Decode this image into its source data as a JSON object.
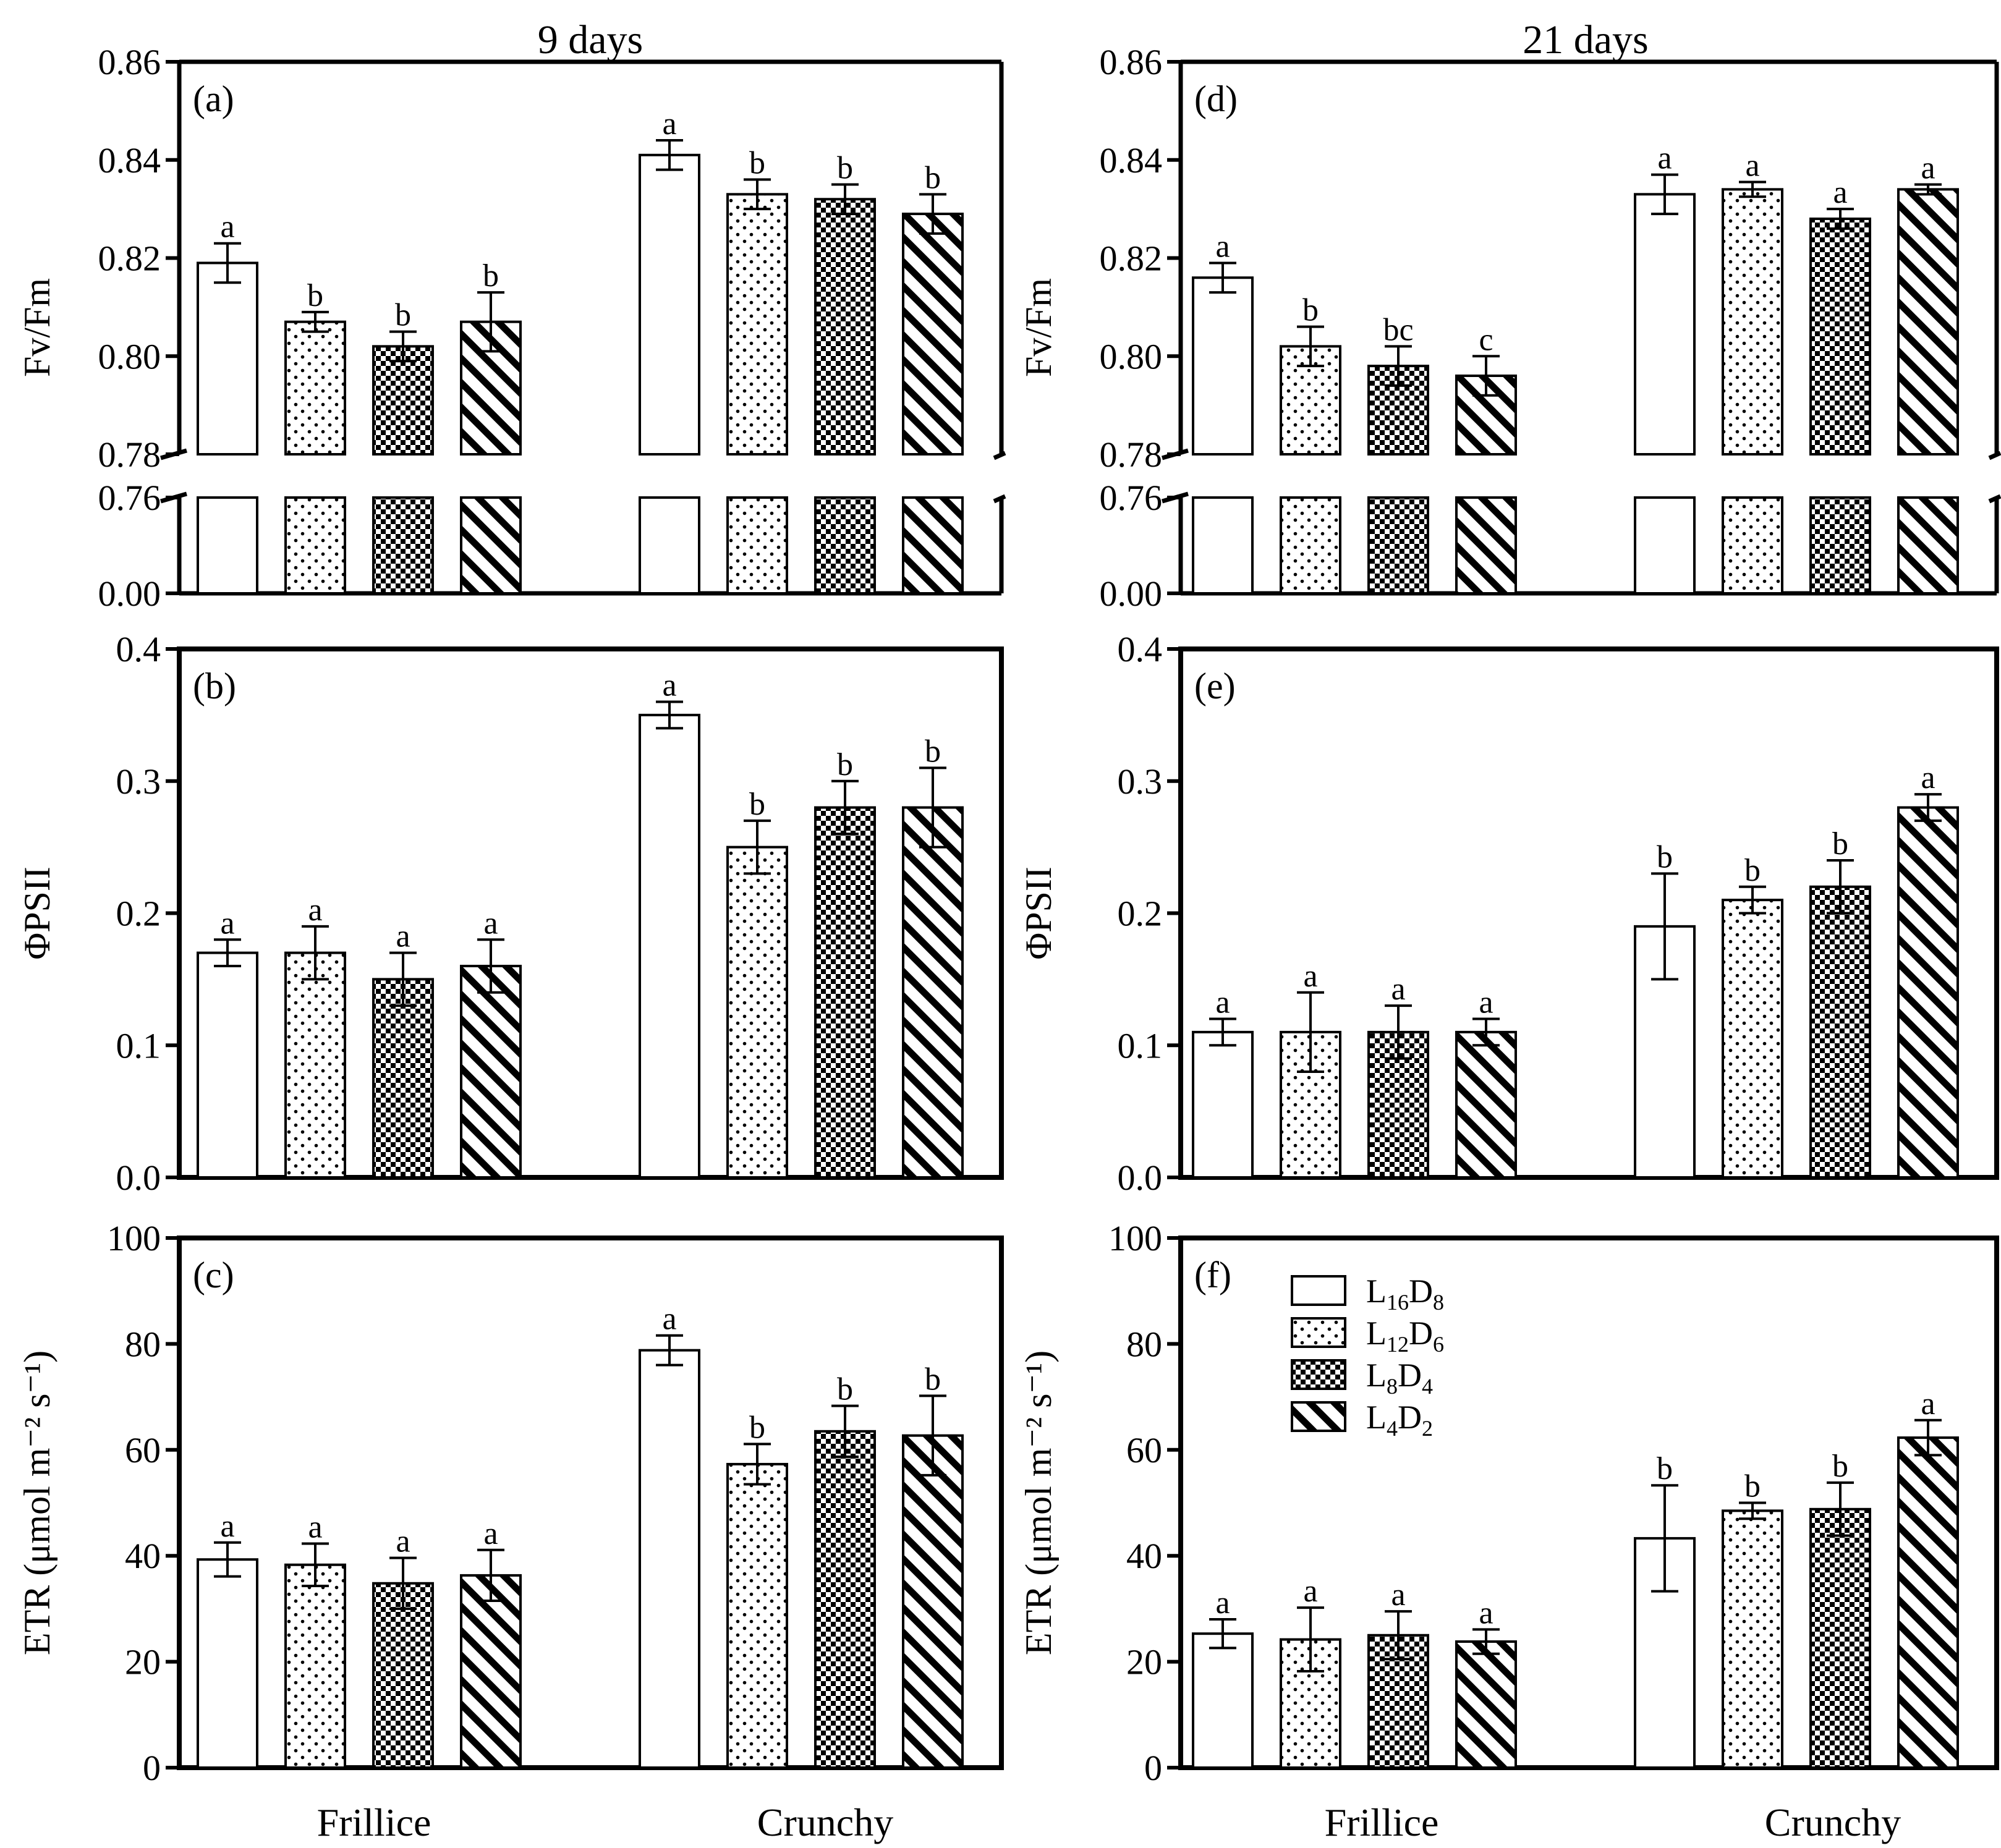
{
  "column_titles": [
    "9 days",
    "21 days"
  ],
  "x_categories": [
    "Frillice",
    "Crunchy"
  ],
  "treatments": [
    {
      "id": "L16D8",
      "base1": "L",
      "sub1": "16",
      "base2": "D",
      "sub2": "8",
      "pattern": "empty"
    },
    {
      "id": "L12D6",
      "base1": "L",
      "sub1": "12",
      "base2": "D",
      "sub2": "6",
      "pattern": "dots"
    },
    {
      "id": "L8D4",
      "base1": "L",
      "sub1": "8",
      "base2": "D",
      "sub2": "4",
      "pattern": "checker"
    },
    {
      "id": "L4D2",
      "base1": "L",
      "sub1": "4",
      "base2": "D",
      "sub2": "2",
      "pattern": "hatch"
    }
  ],
  "chart_data": [
    {
      "panel": "(a)",
      "type": "bar",
      "column": "9 days",
      "ylabel": "Fv/Fm",
      "categories": [
        "Frillice",
        "Crunchy"
      ],
      "broken_axis": true,
      "yticks_upper": [
        "0.78",
        "0.80",
        "0.82",
        "0.84",
        "0.86"
      ],
      "yticks_lower": [
        "0.00",
        "0.76"
      ],
      "ylim": [
        0.78,
        0.86
      ],
      "series": [
        {
          "name": "L16D8",
          "values": [
            0.819,
            0.841
          ],
          "errors": [
            0.004,
            0.003
          ],
          "letters": [
            "a",
            "a"
          ]
        },
        {
          "name": "L12D6",
          "values": [
            0.807,
            0.833
          ],
          "errors": [
            0.002,
            0.003
          ],
          "letters": [
            "b",
            "b"
          ]
        },
        {
          "name": "L8D4",
          "values": [
            0.802,
            0.832
          ],
          "errors": [
            0.003,
            0.003
          ],
          "letters": [
            "b",
            "b"
          ]
        },
        {
          "name": "L4D2",
          "values": [
            0.807,
            0.829
          ],
          "errors": [
            0.006,
            0.004
          ],
          "letters": [
            "b",
            "b"
          ]
        }
      ]
    },
    {
      "panel": "(b)",
      "type": "bar",
      "column": "9 days",
      "ylabel": "ΦPSII",
      "categories": [
        "Frillice",
        "Crunchy"
      ],
      "yticks": [
        "0.0",
        "0.1",
        "0.2",
        "0.3",
        "0.4"
      ],
      "ylim": [
        0,
        0.4
      ],
      "series": [
        {
          "name": "L16D8",
          "values": [
            0.17,
            0.35
          ],
          "errors": [
            0.01,
            0.01
          ],
          "letters": [
            "a",
            "a"
          ]
        },
        {
          "name": "L12D6",
          "values": [
            0.17,
            0.25
          ],
          "errors": [
            0.02,
            0.02
          ],
          "letters": [
            "a",
            "b"
          ]
        },
        {
          "name": "L8D4",
          "values": [
            0.15,
            0.28
          ],
          "errors": [
            0.02,
            0.02
          ],
          "letters": [
            "a",
            "b"
          ]
        },
        {
          "name": "L4D2",
          "values": [
            0.16,
            0.28
          ],
          "errors": [
            0.02,
            0.03
          ],
          "letters": [
            "a",
            "b"
          ]
        }
      ]
    },
    {
      "panel": "(c)",
      "type": "bar",
      "column": "9 days",
      "ylabel": "ETR (μmol m⁻² s⁻¹)",
      "categories": [
        "Frillice",
        "Crunchy"
      ],
      "yticks": [
        "0",
        "20",
        "40",
        "60",
        "80",
        "100"
      ],
      "ylim": [
        0,
        100
      ],
      "series": [
        {
          "name": "L16D8",
          "values": [
            39.3,
            78.8
          ],
          "errors": [
            3.2,
            2.8
          ],
          "letters": [
            "a",
            "a"
          ]
        },
        {
          "name": "L12D6",
          "values": [
            38.3,
            57.3
          ],
          "errors": [
            4.0,
            3.8
          ],
          "letters": [
            "a",
            "b"
          ]
        },
        {
          "name": "L8D4",
          "values": [
            34.8,
            63.5
          ],
          "errors": [
            4.8,
            4.8
          ],
          "letters": [
            "a",
            "b"
          ]
        },
        {
          "name": "L4D2",
          "values": [
            36.3,
            62.7
          ],
          "errors": [
            4.8,
            7.5
          ],
          "letters": [
            "a",
            "b"
          ]
        }
      ]
    },
    {
      "panel": "(d)",
      "type": "bar",
      "column": "21 days",
      "ylabel": "Fv/Fm",
      "categories": [
        "Frillice",
        "Crunchy"
      ],
      "broken_axis": true,
      "yticks_upper": [
        "0.78",
        "0.80",
        "0.82",
        "0.84",
        "0.86"
      ],
      "yticks_lower": [
        "0.00",
        "0.76"
      ],
      "ylim": [
        0.78,
        0.86
      ],
      "series": [
        {
          "name": "L16D8",
          "values": [
            0.816,
            0.833
          ],
          "errors": [
            0.003,
            0.004
          ],
          "letters": [
            "a",
            "a"
          ]
        },
        {
          "name": "L12D6",
          "values": [
            0.802,
            0.834
          ],
          "errors": [
            0.004,
            0.0015
          ],
          "letters": [
            "b",
            "a"
          ]
        },
        {
          "name": "L8D4",
          "values": [
            0.798,
            0.828
          ],
          "errors": [
            0.004,
            0.002
          ],
          "letters": [
            "bc",
            "a"
          ]
        },
        {
          "name": "L4D2",
          "values": [
            0.796,
            0.834
          ],
          "errors": [
            0.004,
            0.001
          ],
          "letters": [
            "c",
            "a"
          ]
        }
      ]
    },
    {
      "panel": "(e)",
      "type": "bar",
      "column": "21 days",
      "ylabel": "ΦPSII",
      "categories": [
        "Frillice",
        "Crunchy"
      ],
      "yticks": [
        "0.0",
        "0.1",
        "0.2",
        "0.3",
        "0.4"
      ],
      "ylim": [
        0,
        0.4
      ],
      "series": [
        {
          "name": "L16D8",
          "values": [
            0.11,
            0.19
          ],
          "errors": [
            0.01,
            0.04
          ],
          "letters": [
            "a",
            "b"
          ]
        },
        {
          "name": "L12D6",
          "values": [
            0.11,
            0.21
          ],
          "errors": [
            0.03,
            0.01
          ],
          "letters": [
            "a",
            "b"
          ]
        },
        {
          "name": "L8D4",
          "values": [
            0.11,
            0.22
          ],
          "errors": [
            0.02,
            0.02
          ],
          "letters": [
            "a",
            "b"
          ]
        },
        {
          "name": "L4D2",
          "values": [
            0.11,
            0.28
          ],
          "errors": [
            0.01,
            0.01
          ],
          "letters": [
            "a",
            "a"
          ]
        }
      ]
    },
    {
      "panel": "(f)",
      "type": "bar",
      "column": "21 days",
      "ylabel": "ETR (μmol m⁻² s⁻¹)",
      "categories": [
        "Frillice",
        "Crunchy"
      ],
      "yticks": [
        "0",
        "20",
        "40",
        "60",
        "80",
        "100"
      ],
      "ylim": [
        0,
        100
      ],
      "legend": "top-left",
      "series": [
        {
          "name": "L16D8",
          "values": [
            25.3,
            43.3
          ],
          "errors": [
            2.7,
            10.0
          ],
          "letters": [
            "a",
            "b"
          ]
        },
        {
          "name": "L12D6",
          "values": [
            24.2,
            48.5
          ],
          "errors": [
            6.0,
            1.5
          ],
          "letters": [
            "a",
            "b"
          ]
        },
        {
          "name": "L8D4",
          "values": [
            25.0,
            48.8
          ],
          "errors": [
            4.5,
            5.0
          ],
          "letters": [
            "a",
            "b"
          ]
        },
        {
          "name": "L4D2",
          "values": [
            23.8,
            62.3
          ],
          "errors": [
            2.3,
            3.3
          ],
          "letters": [
            "a",
            "a"
          ]
        }
      ]
    }
  ]
}
